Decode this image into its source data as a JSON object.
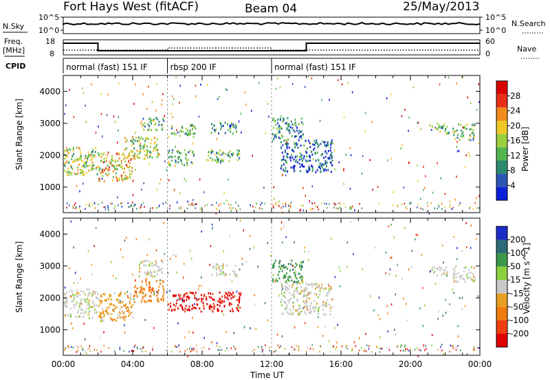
{
  "header": {
    "title": "Fort Hays West (fitACF)",
    "beam": "Beam 04",
    "date": "25/May/2013"
  },
  "info_panels": {
    "nsky_label": "N.Sky",
    "nsearch_label": "N.Search",
    "noise_ticks": [
      "10^5",
      "10^0"
    ],
    "freq_label_1": "Freq.",
    "freq_label_2": "[MHz]",
    "freq_ticks": [
      "18",
      "8"
    ],
    "nave_label": "Nave",
    "nave_ticks": [
      "60",
      "0"
    ],
    "cpid_label": "CPID",
    "cpid_segments": [
      {
        "label": "normal (fast) 151 IF",
        "start_h": 0,
        "end_h": 6
      },
      {
        "label": "rbsp 200 IF",
        "start_h": 6,
        "end_h": 12
      },
      {
        "label": "normal (fast) 151 IF",
        "start_h": 12,
        "end_h": 24
      }
    ]
  },
  "chart_data": [
    {
      "type": "heatmap",
      "name": "Power",
      "xlabel": "Time UT",
      "ylabel": "Slant Range [km]",
      "colorbar_label": "Power [dB]",
      "xlim": [
        0,
        24
      ],
      "ylim": [
        200,
        4500
      ],
      "xticks": [
        "00:00",
        "04:00",
        "08:00",
        "12:00",
        "16:00",
        "20:00",
        "00:00"
      ],
      "yticks": [
        1000,
        2000,
        3000,
        4000
      ],
      "colorbar_ticks": [
        4,
        8,
        12,
        16,
        20,
        24,
        28
      ],
      "colorbar_range": [
        0,
        30
      ],
      "colors": [
        "#0a1fd8",
        "#2a56b4",
        "#2e8a6e",
        "#52b550",
        "#9ad040",
        "#f0c828",
        "#f08c1c",
        "#e83018",
        "#d80000"
      ],
      "echo_regions": [
        {
          "t": [
            0.0,
            2.0
          ],
          "r": [
            1400,
            2300
          ],
          "level": 18
        },
        {
          "t": [
            2.0,
            4.0
          ],
          "r": [
            1200,
            2100
          ],
          "level": 22
        },
        {
          "t": [
            3.5,
            5.5
          ],
          "r": [
            1900,
            2600
          ],
          "level": 17
        },
        {
          "t": [
            4.5,
            5.8
          ],
          "r": [
            2800,
            3200
          ],
          "level": 14
        },
        {
          "t": [
            6.0,
            7.5
          ],
          "r": [
            1700,
            2200
          ],
          "level": 13
        },
        {
          "t": [
            6.2,
            7.6
          ],
          "r": [
            2600,
            3000
          ],
          "level": 12
        },
        {
          "t": [
            8.3,
            10.2
          ],
          "r": [
            1800,
            2200
          ],
          "level": 13
        },
        {
          "t": [
            8.5,
            10.0
          ],
          "r": [
            2700,
            3050
          ],
          "level": 9
        },
        {
          "t": [
            12.0,
            13.8
          ],
          "r": [
            2500,
            3200
          ],
          "level": 8
        },
        {
          "t": [
            12.5,
            15.5
          ],
          "r": [
            1500,
            2500
          ],
          "level": 5
        },
        {
          "t": [
            21.0,
            22.2
          ],
          "r": [
            2700,
            3000
          ],
          "level": 12
        },
        {
          "t": [
            22.4,
            23.7
          ],
          "r": [
            2500,
            3000
          ],
          "level": 12
        }
      ]
    },
    {
      "type": "heatmap",
      "name": "Velocity",
      "xlabel": "Time UT",
      "ylabel": "Slant Range [km]",
      "colorbar_label": "Velocity [m s^-1]",
      "xlim": [
        0,
        24
      ],
      "ylim": [
        200,
        4500
      ],
      "xticks": [
        "00:00",
        "04:00",
        "08:00",
        "12:00",
        "16:00",
        "20:00",
        "00:00"
      ],
      "yticks": [
        1000,
        2000,
        3000,
        4000
      ],
      "colorbar_ticks": [
        "200",
        "100",
        "50",
        "15",
        "-15",
        "-50",
        "-100",
        "-200"
      ],
      "colors": [
        "#1c2bc8",
        "#2e6a78",
        "#3c9848",
        "#8ad040",
        "#c8c8c8",
        "#e8a020",
        "#f07c10",
        "#f04010",
        "#e00000"
      ],
      "echo_regions": [
        {
          "t": [
            0.0,
            2.0
          ],
          "r": [
            1400,
            2300
          ],
          "value": 0
        },
        {
          "t": [
            2.0,
            4.0
          ],
          "r": [
            1300,
            2200
          ],
          "value": -40
        },
        {
          "t": [
            4.0,
            5.8
          ],
          "r": [
            1900,
            2600
          ],
          "value": -60
        },
        {
          "t": [
            4.3,
            5.8
          ],
          "r": [
            2700,
            3200
          ],
          "value": 0
        },
        {
          "t": [
            6.0,
            7.8
          ],
          "r": [
            1600,
            2200
          ],
          "value": -200
        },
        {
          "t": [
            7.8,
            10.2
          ],
          "r": [
            1600,
            2200
          ],
          "value": -200
        },
        {
          "t": [
            8.5,
            10.0
          ],
          "r": [
            2700,
            3100
          ],
          "value": 0
        },
        {
          "t": [
            12.0,
            13.8
          ],
          "r": [
            2500,
            3200
          ],
          "value": 40
        },
        {
          "t": [
            12.5,
            15.5
          ],
          "r": [
            1500,
            2500
          ],
          "value": 0
        },
        {
          "t": [
            21.0,
            22.2
          ],
          "r": [
            2700,
            3000
          ],
          "value": 0
        },
        {
          "t": [
            22.4,
            23.7
          ],
          "r": [
            2500,
            3000
          ],
          "value": 0
        }
      ]
    }
  ]
}
